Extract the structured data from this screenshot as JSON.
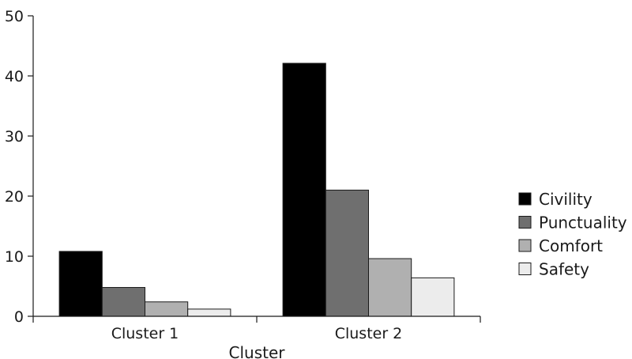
{
  "chart_data": {
    "type": "bar",
    "title": "",
    "xlabel": "Cluster",
    "ylabel": "",
    "ylim": [
      0,
      50
    ],
    "yticks": [
      0,
      10,
      20,
      30,
      40,
      50
    ],
    "grid": false,
    "legend_position": "right",
    "categories": [
      "Cluster 1",
      "Cluster 2"
    ],
    "series": [
      {
        "name": "Civility",
        "color": "#000000",
        "values": [
          10.8,
          42.1
        ]
      },
      {
        "name": "Punctuality",
        "color": "#6f6f6f",
        "values": [
          4.8,
          21.0
        ]
      },
      {
        "name": "Comfort",
        "color": "#b0b0b0",
        "values": [
          2.4,
          9.6
        ]
      },
      {
        "name": "Safety",
        "color": "#ececec",
        "values": [
          1.2,
          6.4
        ]
      }
    ]
  }
}
